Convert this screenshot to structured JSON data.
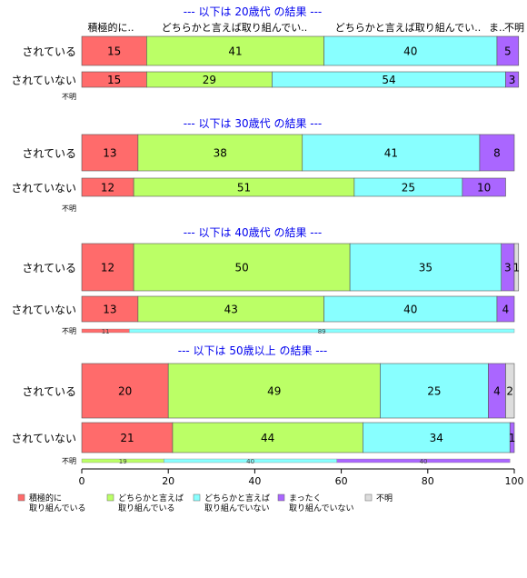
{
  "chart_data": {
    "type": "bar",
    "orientation": "horizontal",
    "stacked": true,
    "xlim": [
      0,
      100
    ],
    "xticks": [
      0,
      20,
      40,
      60,
      80,
      100
    ],
    "categories_legend": [
      {
        "name": "積極的に取り組んでいる",
        "lines": [
          "積極的に",
          "取り組んでいる"
        ],
        "color": "#ff6b6b"
      },
      {
        "name": "どちらかと言えば取り組んでいる",
        "lines": [
          "どちらかと言えば",
          "取り組んでいる"
        ],
        "color": "#bbff66"
      },
      {
        "name": "どちらかと言えば取り組んでいない",
        "lines": [
          "どちらかと言えば",
          "取り組んでいない"
        ],
        "color": "#88ffff"
      },
      {
        "name": "まったく取り組んでいない",
        "lines": [
          "まったく",
          "取り組んでいない"
        ],
        "color": "#aa66ff"
      },
      {
        "name": "不明",
        "lines": [
          "不明"
        ],
        "color": "#dddddd"
      }
    ],
    "top_header_labels": [
      "積極的に..",
      "どちらかと言えば取り組んでい..",
      "どちらかと言えば取り組んでい..",
      "ま..",
      "不明"
    ],
    "panels": [
      {
        "title": "--- 以下は 20歳代 の結果 ---",
        "rows": [
          {
            "label": "されている",
            "values": [
              15,
              41,
              40,
              5,
              0
            ],
            "labels": [
              "15",
              "41",
              "40",
              "5",
              ""
            ]
          },
          {
            "label": "されていない",
            "values": [
              15,
              29,
              54,
              3,
              0
            ],
            "labels": [
              "15",
              "29",
              "54",
              "3",
              ""
            ]
          }
        ],
        "unknown": {
          "label": "不明",
          "values": [],
          "labels": []
        }
      },
      {
        "title": "--- 以下は 30歳代 の結果 ---",
        "rows": [
          {
            "label": "されている",
            "values": [
              13,
              38,
              41,
              8,
              0
            ],
            "labels": [
              "13",
              "38",
              "41",
              "8",
              ""
            ]
          },
          {
            "label": "されていない",
            "values": [
              12,
              51,
              25,
              10,
              0
            ],
            "labels": [
              "12",
              "51",
              "25",
              "10",
              ""
            ]
          }
        ],
        "unknown": {
          "label": "不明",
          "values": [],
          "labels": []
        }
      },
      {
        "title": "--- 以下は 40歳代 の結果 ---",
        "rows": [
          {
            "label": "されている",
            "values": [
              12,
              50,
              35,
              3,
              1
            ],
            "labels": [
              "12",
              "50",
              "35",
              "3",
              "1"
            ]
          },
          {
            "label": "されていない",
            "values": [
              13,
              43,
              40,
              4,
              0
            ],
            "labels": [
              "13",
              "43",
              "40",
              "4",
              ""
            ]
          }
        ],
        "unknown": {
          "label": "不明",
          "values": [
            11,
            0,
            89,
            0,
            0
          ],
          "labels": [
            "11",
            "",
            "89",
            "",
            ""
          ]
        }
      },
      {
        "title": "--- 以下は 50歳以上 の結果 ---",
        "rows": [
          {
            "label": "されている",
            "values": [
              20,
              49,
              25,
              4,
              2
            ],
            "labels": [
              "20",
              "49",
              "25",
              "4",
              "2"
            ]
          },
          {
            "label": "されていない",
            "values": [
              21,
              44,
              34,
              1,
              0
            ],
            "labels": [
              "21",
              "44",
              "34",
              "1",
              ""
            ]
          }
        ],
        "unknown": {
          "label": "不明",
          "values": [
            0,
            19,
            40,
            40,
            0
          ],
          "labels": [
            "",
            "19",
            "40",
            "40",
            ""
          ]
        }
      }
    ]
  }
}
